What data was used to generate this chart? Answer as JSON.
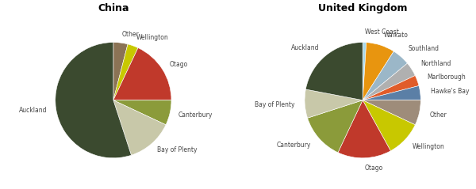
{
  "china_title": "China",
  "uk_title": "United Kingdom",
  "china_labels": [
    "Other",
    "Wellington",
    "Otago",
    "Canterbury",
    "Bay of Plenty",
    "Auckland"
  ],
  "china_values": [
    4,
    3,
    18,
    7,
    13,
    55
  ],
  "china_colors": [
    "#8B7355",
    "#C8C800",
    "#C0392B",
    "#8B9B3A",
    "#C8C8A9",
    "#3B4A2F"
  ],
  "china_startangle": 90,
  "uk_labels": [
    "West Coast",
    "Waikato",
    "Southland",
    "Northland",
    "Marlborough",
    "Hawke's Bay",
    "Other",
    "Wellington",
    "Otago",
    "Canterbury",
    "Bay of Plenty",
    "Auckland"
  ],
  "uk_values": [
    1,
    8,
    5,
    4,
    3,
    4,
    7,
    10,
    15,
    13,
    8,
    22
  ],
  "uk_colors": [
    "#A8D8EA",
    "#E8950F",
    "#9BB7C8",
    "#B0B0B0",
    "#E05C2A",
    "#5B7FA6",
    "#9E8C7A",
    "#C8C800",
    "#C0392B",
    "#8B9B3A",
    "#C8C8A9",
    "#3B4A2F"
  ],
  "uk_startangle": 90,
  "label_fontsize": 5.5,
  "title_fontsize": 9,
  "bg_color": "#FFFFFF"
}
